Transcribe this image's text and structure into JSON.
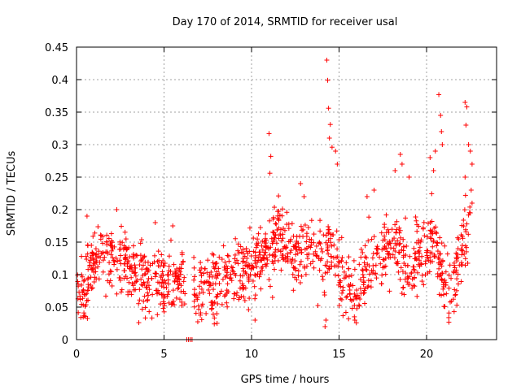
{
  "chart_data": {
    "type": "scatter",
    "title": "Day 170 of 2014, SRMTID for receiver usal",
    "xlabel": "GPS time / hours",
    "ylabel": "SRMTID / TECUs",
    "xlim": [
      0,
      24
    ],
    "ylim": [
      0,
      0.45
    ],
    "xticks": [
      0,
      5,
      10,
      15,
      20
    ],
    "xtick_labels": [
      "0",
      "5",
      "10",
      "15",
      "20"
    ],
    "yticks": [
      0,
      0.05,
      0.1,
      0.15,
      0.2,
      0.25,
      0.3,
      0.35,
      0.4,
      0.45
    ],
    "ytick_labels": [
      "0",
      "0.05",
      "0.1",
      "0.15",
      "0.2",
      "0.25",
      "0.3",
      "0.35",
      "0.4",
      "0.45"
    ],
    "grid": true,
    "marker": "plus",
    "color": "#ff0000",
    "series": [
      {
        "name": "SRMTID",
        "trend": [
          [
            0,
            0.1
          ],
          [
            0.3,
            0.07
          ],
          [
            0.5,
            0.05
          ],
          [
            0.7,
            0.11
          ],
          [
            1,
            0.12
          ],
          [
            1.5,
            0.13
          ],
          [
            2,
            0.12
          ],
          [
            2.5,
            0.125
          ],
          [
            3,
            0.11
          ],
          [
            3.5,
            0.1
          ],
          [
            4,
            0.09
          ],
          [
            4.5,
            0.095
          ],
          [
            5,
            0.085
          ],
          [
            5.5,
            0.09
          ],
          [
            6,
            0.1
          ],
          [
            6.5,
            0.09
          ],
          [
            7,
            0.065
          ],
          [
            7.5,
            0.08
          ],
          [
            8,
            0.085
          ],
          [
            8.5,
            0.1
          ],
          [
            9,
            0.1
          ],
          [
            9.5,
            0.105
          ],
          [
            10,
            0.11
          ],
          [
            10.5,
            0.13
          ],
          [
            11,
            0.14
          ],
          [
            11.5,
            0.17
          ],
          [
            12,
            0.15
          ],
          [
            12.5,
            0.14
          ],
          [
            13,
            0.13
          ],
          [
            13.5,
            0.15
          ],
          [
            14,
            0.12
          ],
          [
            14.3,
            0.13
          ],
          [
            14.6,
            0.14
          ],
          [
            15,
            0.1
          ],
          [
            15.5,
            0.08
          ],
          [
            16,
            0.06
          ],
          [
            16.5,
            0.1
          ],
          [
            17,
            0.12
          ],
          [
            17.5,
            0.13
          ],
          [
            18,
            0.15
          ],
          [
            18.5,
            0.13
          ],
          [
            19,
            0.1
          ],
          [
            19.5,
            0.13
          ],
          [
            20,
            0.14
          ],
          [
            20.5,
            0.15
          ],
          [
            21,
            0.08
          ],
          [
            21.5,
            0.07
          ],
          [
            22,
            0.14
          ],
          [
            22.5,
            0.19
          ]
        ],
        "spread": 0.035,
        "count": 1300,
        "outliers": [
          [
            6.3,
            0
          ],
          [
            6.4,
            0
          ],
          [
            6.5,
            0
          ],
          [
            6.6,
            0
          ],
          [
            11.0,
            0.317
          ],
          [
            11.1,
            0.282
          ],
          [
            11.05,
            0.256
          ],
          [
            14.3,
            0.43
          ],
          [
            14.35,
            0.399
          ],
          [
            14.4,
            0.356
          ],
          [
            14.5,
            0.331
          ],
          [
            14.45,
            0.31
          ],
          [
            14.6,
            0.296
          ],
          [
            14.8,
            0.29
          ],
          [
            14.9,
            0.27
          ],
          [
            18.2,
            0.26
          ],
          [
            18.5,
            0.285
          ],
          [
            18.6,
            0.27
          ],
          [
            19.0,
            0.25
          ],
          [
            20.7,
            0.377
          ],
          [
            20.8,
            0.345
          ],
          [
            20.85,
            0.32
          ],
          [
            20.9,
            0.3
          ],
          [
            20.5,
            0.29
          ],
          [
            20.2,
            0.28
          ],
          [
            20.4,
            0.26
          ],
          [
            22.2,
            0.365
          ],
          [
            22.3,
            0.358
          ],
          [
            22.25,
            0.33
          ],
          [
            22.4,
            0.3
          ],
          [
            22.5,
            0.29
          ],
          [
            22.6,
            0.27
          ],
          [
            22.2,
            0.25
          ],
          [
            22.55,
            0.23
          ],
          [
            22.6,
            0.21
          ],
          [
            22.5,
            0.195
          ],
          [
            2.3,
            0.2
          ],
          [
            0.6,
            0.19
          ],
          [
            4.5,
            0.18
          ],
          [
            5.5,
            0.175
          ],
          [
            12.8,
            0.24
          ],
          [
            13.0,
            0.22
          ],
          [
            17.0,
            0.23
          ],
          [
            16.6,
            0.22
          ],
          [
            14.2,
            0.02
          ],
          [
            14.25,
            0.03
          ],
          [
            10.2,
            0.03
          ],
          [
            11.2,
            0.065
          ],
          [
            15.9,
            0.03
          ]
        ]
      }
    ]
  }
}
